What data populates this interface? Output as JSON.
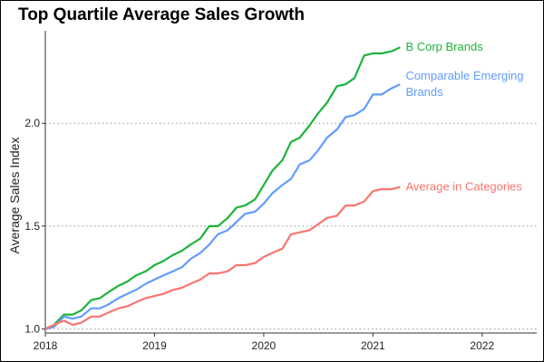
{
  "chart_data": {
    "type": "line",
    "title": "Top Quartile Average Sales Growth",
    "xlabel": "",
    "ylabel": "Average Sales Index",
    "xlim": [
      2018,
      2022.5
    ],
    "ylim": [
      0.98,
      2.45
    ],
    "x_ticks": [
      2018,
      2019,
      2020,
      2021,
      2022
    ],
    "x_tick_labels": [
      "2018",
      "2019",
      "2020",
      "2021",
      "2022"
    ],
    "y_ticks": [
      1.0,
      1.5,
      2.0
    ],
    "y_tick_labels": [
      "1.0",
      "1.5",
      "2.0"
    ],
    "grid": "horizontal dotted",
    "legend": "direct labels at line ends",
    "series": [
      {
        "name": "B Corp Brands",
        "label_lines": [
          "B Corp Brands"
        ],
        "color": "#1db33c",
        "x": [
          2018.0,
          2018.08,
          2018.17,
          2018.25,
          2018.33,
          2018.42,
          2018.5,
          2018.58,
          2018.67,
          2018.75,
          2018.83,
          2018.92,
          2019.0,
          2019.08,
          2019.17,
          2019.25,
          2019.33,
          2019.42,
          2019.5,
          2019.58,
          2019.67,
          2019.75,
          2019.83,
          2019.92,
          2020.0,
          2020.08,
          2020.17,
          2020.25,
          2020.33,
          2020.42,
          2020.5,
          2020.58,
          2020.67,
          2020.75,
          2020.83,
          2020.92,
          2021.0,
          2021.08,
          2021.17,
          2021.25
        ],
        "y": [
          1.0,
          1.02,
          1.07,
          1.07,
          1.09,
          1.14,
          1.15,
          1.18,
          1.21,
          1.23,
          1.26,
          1.28,
          1.31,
          1.33,
          1.36,
          1.38,
          1.41,
          1.44,
          1.5,
          1.5,
          1.54,
          1.59,
          1.6,
          1.63,
          1.7,
          1.77,
          1.82,
          1.91,
          1.93,
          1.99,
          2.05,
          2.1,
          2.18,
          2.19,
          2.22,
          2.33,
          2.34,
          2.34,
          2.35,
          2.37
        ]
      },
      {
        "name": "Comparable Emerging Brands",
        "label_lines": [
          "Comparable Emerging",
          "Brands"
        ],
        "color": "#619cff",
        "x": [
          2018.0,
          2018.08,
          2018.17,
          2018.25,
          2018.33,
          2018.42,
          2018.5,
          2018.58,
          2018.67,
          2018.75,
          2018.83,
          2018.92,
          2019.0,
          2019.08,
          2019.17,
          2019.25,
          2019.33,
          2019.42,
          2019.5,
          2019.58,
          2019.67,
          2019.75,
          2019.83,
          2019.92,
          2020.0,
          2020.08,
          2020.17,
          2020.25,
          2020.33,
          2020.42,
          2020.5,
          2020.58,
          2020.67,
          2020.75,
          2020.83,
          2020.92,
          2021.0,
          2021.08,
          2021.17,
          2021.25
        ],
        "y": [
          1.0,
          1.01,
          1.06,
          1.05,
          1.06,
          1.1,
          1.1,
          1.12,
          1.15,
          1.17,
          1.19,
          1.22,
          1.24,
          1.26,
          1.28,
          1.3,
          1.34,
          1.37,
          1.41,
          1.46,
          1.48,
          1.52,
          1.56,
          1.57,
          1.61,
          1.66,
          1.7,
          1.73,
          1.8,
          1.82,
          1.87,
          1.93,
          1.97,
          2.03,
          2.04,
          2.07,
          2.14,
          2.14,
          2.17,
          2.19
        ]
      },
      {
        "name": "Average in Categories",
        "label_lines": [
          "Average in Categories"
        ],
        "color": "#f8766d",
        "x": [
          2018.0,
          2018.08,
          2018.17,
          2018.25,
          2018.33,
          2018.42,
          2018.5,
          2018.58,
          2018.67,
          2018.75,
          2018.83,
          2018.92,
          2019.0,
          2019.08,
          2019.17,
          2019.25,
          2019.33,
          2019.42,
          2019.5,
          2019.58,
          2019.67,
          2019.75,
          2019.83,
          2019.92,
          2020.0,
          2020.08,
          2020.17,
          2020.25,
          2020.33,
          2020.42,
          2020.5,
          2020.58,
          2020.67,
          2020.75,
          2020.83,
          2020.92,
          2021.0,
          2021.08,
          2021.17,
          2021.25
        ],
        "y": [
          1.0,
          1.02,
          1.04,
          1.02,
          1.03,
          1.06,
          1.06,
          1.08,
          1.1,
          1.11,
          1.13,
          1.15,
          1.16,
          1.17,
          1.19,
          1.2,
          1.22,
          1.24,
          1.27,
          1.27,
          1.28,
          1.31,
          1.31,
          1.32,
          1.35,
          1.37,
          1.39,
          1.46,
          1.47,
          1.48,
          1.51,
          1.54,
          1.55,
          1.6,
          1.6,
          1.62,
          1.67,
          1.68,
          1.68,
          1.69
        ]
      }
    ]
  }
}
